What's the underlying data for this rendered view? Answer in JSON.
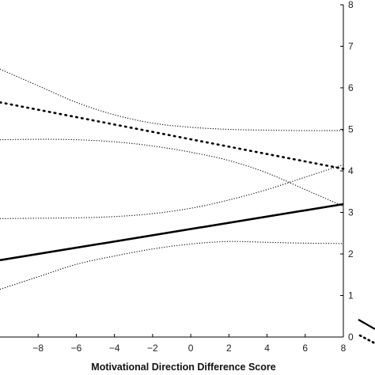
{
  "chart_data": {
    "type": "line",
    "title": "",
    "xlabel": "Motivational Direction Difference Score",
    "ylabel": "",
    "xlim": [
      -10,
      8
    ],
    "ylim": [
      0,
      8
    ],
    "x_ticks": [
      -8,
      -6,
      -4,
      -2,
      0,
      2,
      4,
      6,
      8
    ],
    "y_ticks": [
      0,
      1,
      2,
      3,
      4,
      5,
      6,
      7,
      8
    ],
    "grid": false,
    "series": [
      {
        "style": "solid",
        "x": [
          -10,
          8
        ],
        "y": [
          1.85,
          3.2
        ]
      },
      {
        "style": "dotted-thick",
        "x": [
          -10,
          8
        ],
        "y": [
          5.65,
          4.05
        ]
      },
      {
        "style": "dotted-band",
        "x": [
          -10,
          -8,
          -6,
          -4,
          -2,
          0,
          2,
          4,
          6,
          8
        ],
        "y": [
          6.45,
          6.05,
          5.65,
          5.35,
          5.15,
          5.05,
          5.0,
          4.98,
          4.97,
          4.97
        ]
      },
      {
        "style": "dotted-band",
        "x": [
          -10,
          -8,
          -6,
          -4,
          -2,
          0,
          2,
          4,
          6,
          8
        ],
        "y": [
          4.75,
          4.76,
          4.75,
          4.7,
          4.6,
          4.45,
          4.25,
          3.95,
          3.55,
          3.15
        ]
      },
      {
        "style": "dotted-band",
        "x": [
          -10,
          -8,
          -6,
          -4,
          -2,
          0,
          2,
          4,
          6,
          8
        ],
        "y": [
          2.85,
          2.86,
          2.87,
          2.9,
          2.97,
          3.1,
          3.3,
          3.55,
          3.85,
          4.15
        ]
      },
      {
        "style": "dotted-band",
        "x": [
          -10,
          -8,
          -6,
          -4,
          -2,
          0,
          2,
          4,
          6,
          8
        ],
        "y": [
          1.15,
          1.45,
          1.75,
          1.95,
          2.12,
          2.24,
          2.3,
          2.28,
          2.26,
          2.25
        ]
      }
    ]
  }
}
